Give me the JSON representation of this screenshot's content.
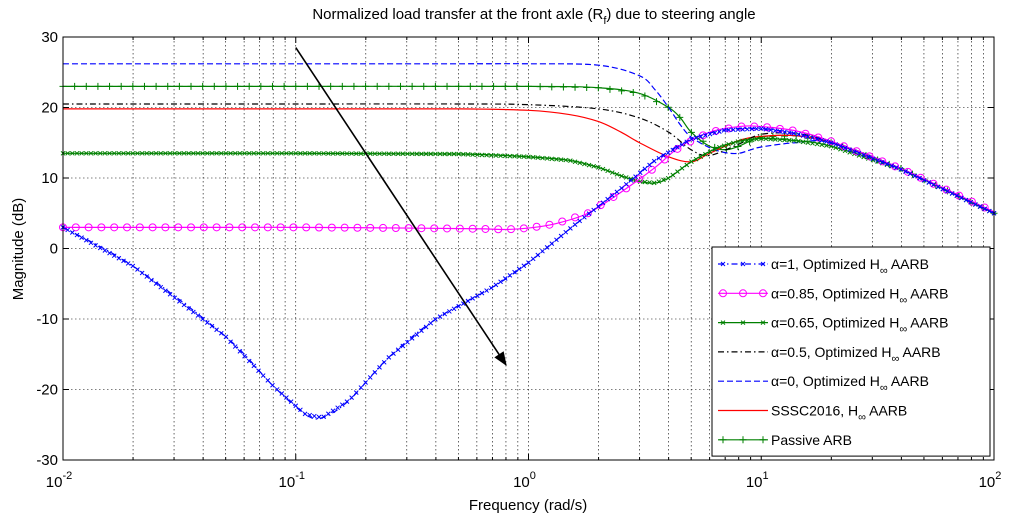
{
  "chart_data": {
    "type": "line",
    "title": "Normalized load transfer at the front axle (R",
    "title_sub": "f",
    "title_tail": ") due to steering angle",
    "xlabel": "Frequency  (rad/s)",
    "ylabel": "Magnitude (dB)",
    "xscale": "log",
    "xlim": [
      0.01,
      100
    ],
    "ylim": [
      -30,
      30
    ],
    "grid": true,
    "legend_position": "bottom-right",
    "x_tick_labels": [
      "10",
      "10",
      "10",
      "10",
      "10"
    ],
    "x_tick_exponents": [
      "-2",
      "-1",
      "0",
      "1",
      "2"
    ],
    "y_tick_labels": [
      "30",
      "20",
      "10",
      "0",
      "-10",
      "-20",
      "-30"
    ],
    "arrow": {
      "from": [
        0.1,
        28.5
      ],
      "to": [
        0.8,
        -16.5
      ]
    },
    "series": [
      {
        "name": "α=1, Optimized H",
        "name_sub": "∞",
        "name_tail": " AARB",
        "color": "#0000ff",
        "style": "dashdot",
        "marker": "x",
        "x": [
          0.01,
          0.02,
          0.05,
          0.08,
          0.11,
          0.13,
          0.17,
          0.25,
          0.4,
          0.7,
          1.0,
          1.6,
          2.5,
          3.5,
          5.0,
          7.0,
          10.0,
          14.0,
          20.0,
          40.0,
          100.0
        ],
        "y": [
          3,
          -2.5,
          -12.5,
          -19.5,
          -23.5,
          -24,
          -21.5,
          -15.5,
          -10,
          -5.5,
          -2,
          3.5,
          8.5,
          12.5,
          15.5,
          16.8,
          17,
          16.3,
          15,
          11.2,
          5
        ]
      },
      {
        "name": "α=0.85, Optimized H",
        "name_sub": "∞",
        "name_tail": " AARB",
        "color": "#ff00ff",
        "style": "solid",
        "marker": "circle",
        "x": [
          0.01,
          0.05,
          0.1,
          0.3,
          0.6,
          0.8,
          1.0,
          1.3,
          1.8,
          2.5,
          3.5,
          4.5,
          6.0,
          8.0,
          10.0,
          14.0,
          20.0,
          40.0,
          100.0
        ],
        "y": [
          3,
          3,
          3,
          2.9,
          2.8,
          2.7,
          2.9,
          3.5,
          5,
          8,
          11.5,
          14.5,
          16.5,
          17.3,
          17.3,
          16.7,
          15.2,
          11.3,
          5.2
        ]
      },
      {
        "name": "α=0.65, Optimized H",
        "name_sub": "∞",
        "name_tail": " AARB",
        "color": "#008000",
        "style": "solid",
        "marker": "x",
        "x": [
          0.01,
          0.1,
          0.5,
          1.0,
          1.5,
          2.0,
          2.5,
          3.0,
          3.5,
          4.0,
          5.0,
          6.5,
          8.0,
          10.0,
          14.0,
          20.0,
          40.0,
          100.0
        ],
        "y": [
          13.5,
          13.5,
          13.4,
          13,
          12.5,
          11.5,
          10.3,
          9.5,
          9.3,
          10,
          12.3,
          14.3,
          15.2,
          15.6,
          15.3,
          14.5,
          11.2,
          5
        ]
      },
      {
        "name": "α=0.5, Optimized H",
        "name_sub": "∞",
        "name_tail": " AARB",
        "color": "#000000",
        "style": "dashdot",
        "marker": "none",
        "x": [
          0.01,
          0.1,
          0.5,
          1.0,
          2.0,
          3.0,
          4.0,
          5.0,
          6.0,
          8.0,
          10.0,
          14.0,
          20.0,
          40.0,
          100.0
        ],
        "y": [
          20.5,
          20.5,
          20.5,
          20.4,
          19.8,
          18.5,
          16.5,
          14,
          13.2,
          14.8,
          16.2,
          16.3,
          15.2,
          11.3,
          5
        ]
      },
      {
        "name": "α=0, Optimized H",
        "name_sub": "∞",
        "name_tail": " AARB",
        "color": "#0000ff",
        "style": "dashed",
        "marker": "none",
        "x": [
          0.01,
          0.1,
          0.5,
          1.0,
          2.0,
          3.0,
          3.5,
          4.0,
          4.5,
          5.0,
          6.0,
          7.0,
          8.0,
          9.0,
          10.0,
          14.0,
          20.0,
          40.0,
          100.0
        ],
        "y": [
          26.2,
          26.2,
          26.2,
          26.2,
          26,
          24.5,
          22.5,
          20,
          17.5,
          15.8,
          14.3,
          13.6,
          13.5,
          14,
          14.4,
          15,
          15,
          11.3,
          5
        ]
      },
      {
        "name": "SSSC2016, H",
        "name_sub": "∞",
        "name_tail": " AARB",
        "color": "#ff0000",
        "style": "solid",
        "marker": "none",
        "x": [
          0.01,
          0.1,
          0.5,
          1.0,
          1.5,
          2.0,
          2.5,
          3.0,
          4.0,
          5.0,
          6.0,
          8.0,
          10.0,
          14.0,
          20.0,
          40.0,
          100.0
        ],
        "y": [
          19.8,
          19.8,
          19.8,
          19.6,
          19,
          18,
          16.5,
          15,
          13,
          12.3,
          13.5,
          15.3,
          15.9,
          16,
          15,
          11.3,
          5
        ]
      },
      {
        "name": "Passive ARB",
        "name_sub": "",
        "name_tail": "",
        "color": "#008000",
        "style": "solid",
        "marker": "plus",
        "x": [
          0.01,
          0.1,
          1.0,
          2.0,
          3.0,
          4.0,
          4.5,
          5.0,
          6.0,
          7.0,
          8.0,
          10.0,
          14.0,
          20.0,
          40.0,
          100.0
        ],
        "y": [
          23,
          23,
          23,
          22.8,
          22,
          20,
          18.5,
          16.5,
          14.5,
          14,
          14.5,
          15.8,
          16,
          15,
          11.3,
          5
        ]
      }
    ]
  }
}
